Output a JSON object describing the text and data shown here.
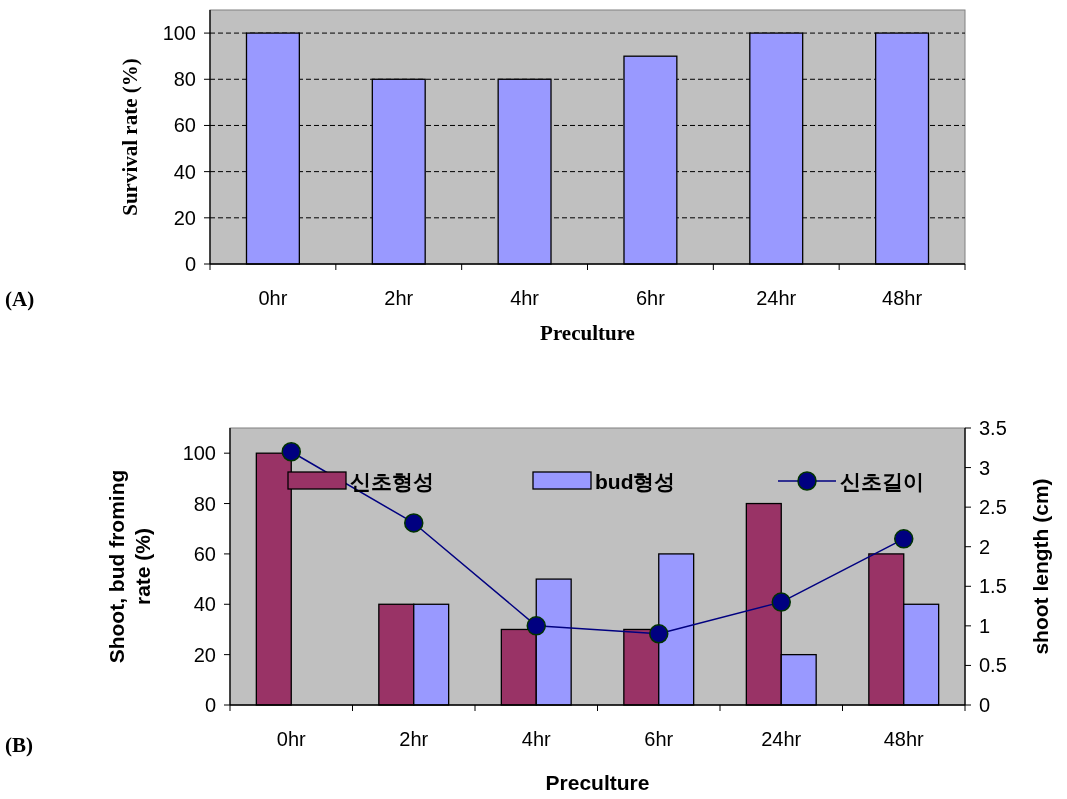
{
  "chart_data": [
    {
      "type": "bar",
      "categories": [
        "0hr",
        "2hr",
        "4hr",
        "6hr",
        "24hr",
        "48hr"
      ],
      "series": [
        {
          "color": "#9999ff",
          "values": [
            100,
            80,
            80,
            90,
            100,
            100
          ]
        }
      ],
      "xlabel": "Preculture",
      "ylabel": "Survival rate (%)",
      "ylim": [
        0,
        110
      ],
      "yticks": [
        0,
        20,
        40,
        60,
        80,
        100
      ],
      "grid": "y",
      "legend": false,
      "annotations": [
        "(A)"
      ]
    },
    {
      "type": "bar",
      "categories": [
        "0hr",
        "2hr",
        "4hr",
        "6hr",
        "24hr",
        "48hr"
      ],
      "series": [
        {
          "name": "신초형성",
          "color": "#993366",
          "values": [
            100,
            40,
            30,
            30,
            80,
            60
          ]
        },
        {
          "name": "bud형성",
          "color": "#9999ff",
          "values": [
            0,
            40,
            50,
            60,
            20,
            40
          ]
        },
        {
          "name": "신초길이",
          "type": "line",
          "axis": "y2",
          "color": "#000080",
          "values": [
            3.2,
            2.3,
            1.0,
            0.9,
            1.3,
            2.1
          ]
        }
      ],
      "xlabel": "Preculture",
      "ylabel": "Shoot, bud froming rate (%)",
      "y2label": "shoot length (cm)",
      "ylim": [
        0,
        110
      ],
      "yticks": [
        0,
        20,
        40,
        60,
        80,
        100
      ],
      "y2lim": [
        0,
        3.5
      ],
      "y2ticks": [
        0,
        0.5,
        1,
        1.5,
        2,
        2.5,
        3,
        3.5
      ],
      "marker": "circle",
      "legend": "top",
      "annotations": [
        "(B)"
      ]
    }
  ]
}
